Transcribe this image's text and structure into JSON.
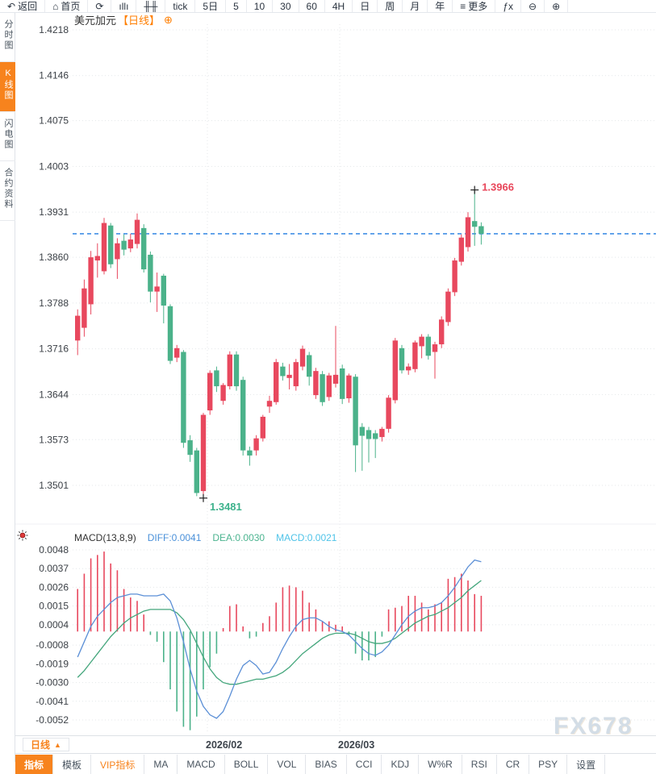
{
  "toolbar": {
    "items": [
      {
        "name": "toolbar-item-back",
        "icon": "back-arrow-icon",
        "glyph": "↶",
        "label": "返回"
      },
      {
        "name": "toolbar-item-home",
        "icon": "home-icon",
        "glyph": "⌂",
        "label": "首页"
      },
      {
        "name": "toolbar-item-refresh",
        "icon": "refresh-icon",
        "glyph": "⟳",
        "label": ""
      },
      {
        "name": "toolbar-item-bar-chart",
        "icon": "bar-chart-icon",
        "glyph": "ıllı",
        "label": ""
      },
      {
        "name": "toolbar-item-candle-chart",
        "icon": "candlestick-icon",
        "glyph": "╫╫",
        "label": ""
      },
      {
        "name": "toolbar-item-tick",
        "label": "tick"
      },
      {
        "name": "toolbar-item-5day",
        "label": "5日"
      },
      {
        "name": "toolbar-item-5min",
        "label": "5"
      },
      {
        "name": "toolbar-item-10min",
        "label": "10"
      },
      {
        "name": "toolbar-item-30min",
        "label": "30"
      },
      {
        "name": "toolbar-item-60min",
        "label": "60"
      },
      {
        "name": "toolbar-item-4h",
        "label": "4H"
      },
      {
        "name": "toolbar-item-daily",
        "label": "日"
      },
      {
        "name": "toolbar-item-weekly",
        "label": "周"
      },
      {
        "name": "toolbar-item-monthly",
        "label": "月"
      },
      {
        "name": "toolbar-item-yearly",
        "label": "年"
      },
      {
        "name": "toolbar-item-more",
        "icon": "menu-icon",
        "glyph": "≡",
        "label": "更多"
      },
      {
        "name": "toolbar-item-formula",
        "icon": "fx-icon",
        "glyph": "ƒx",
        "label": ""
      },
      {
        "name": "toolbar-item-zoom-out",
        "icon": "zoom-out-icon",
        "glyph": "⊖",
        "label": ""
      },
      {
        "name": "toolbar-item-zoom-in",
        "icon": "zoom-in-icon",
        "glyph": "⊕",
        "label": ""
      }
    ]
  },
  "sidebar": {
    "items": [
      {
        "name": "sidebar-item-time-share",
        "label": "分时图"
      },
      {
        "name": "sidebar-item-kline",
        "label": "K线图",
        "active": true
      },
      {
        "name": "sidebar-item-lightning",
        "label": "闪电图"
      },
      {
        "name": "sidebar-item-contract-info",
        "label": "合约资料"
      }
    ]
  },
  "chart": {
    "title_symbol": "美元加元",
    "title_period": "【日线】",
    "add_icon_glyph": "⊕"
  },
  "macd_header": {
    "label": "MACD(13,8,9)",
    "diff": "DIFF:0.0041",
    "dea": "DEA:0.0030",
    "macd": "MACD:0.0021"
  },
  "period_selector": {
    "label": "日线",
    "arrow": "▲"
  },
  "tabs": {
    "items": [
      {
        "name": "tab-indicator",
        "label": "指标",
        "active": true
      },
      {
        "name": "tab-template",
        "label": "模板"
      },
      {
        "name": "tab-vip-indicator",
        "label": "VIP指标",
        "vip": true
      },
      {
        "name": "tab-ma",
        "label": "MA"
      },
      {
        "name": "tab-macd",
        "label": "MACD"
      },
      {
        "name": "tab-boll",
        "label": "BOLL"
      },
      {
        "name": "tab-vol",
        "label": "VOL"
      },
      {
        "name": "tab-bias",
        "label": "BIAS"
      },
      {
        "name": "tab-cci",
        "label": "CCI"
      },
      {
        "name": "tab-kdj",
        "label": "KDJ"
      },
      {
        "name": "tab-wr",
        "label": "W%R"
      },
      {
        "name": "tab-rsi",
        "label": "RSI"
      },
      {
        "name": "tab-cr",
        "label": "CR"
      },
      {
        "name": "tab-psy",
        "label": "PSY"
      },
      {
        "name": "tab-settings",
        "label": "设置"
      }
    ]
  },
  "watermark": "FX678",
  "colors": {
    "up": "#e8485e",
    "down": "#4bb28a",
    "last_price_line": "#1e7be0",
    "diff_line": "#5b8fd6",
    "dea_line": "#44a67c",
    "accent_orange": "#f7831d",
    "high_label": "#e8465a",
    "low_label": "#3db28c",
    "grid": "#e4e7ea",
    "axis_text": "#3a3f45"
  },
  "chart_data": {
    "type": "candlestick",
    "symbol": "美元加元",
    "period": "日线",
    "main": {
      "yticks": [
        "1.4218",
        "1.4146",
        "1.4075",
        "1.4003",
        "1.3931",
        "1.3860",
        "1.3788",
        "1.3716",
        "1.3644",
        "1.3573",
        "1.3501"
      ],
      "last_close": 1.3897,
      "high_marker": {
        "index": 61,
        "label": "1.3966"
      },
      "low_marker": {
        "index": 20,
        "label": "1.3481"
      },
      "candles": [
        [
          1.3729,
          1.3778,
          1.3706,
          1.3768
        ],
        [
          1.3749,
          1.3825,
          1.3735,
          1.3811
        ],
        [
          1.3786,
          1.387,
          1.377,
          1.386
        ],
        [
          1.3855,
          1.3882,
          1.3828,
          1.3862
        ],
        [
          1.3838,
          1.3922,
          1.3833,
          1.3914
        ],
        [
          1.391,
          1.3914,
          1.3843,
          1.3849
        ],
        [
          1.3857,
          1.389,
          1.3826,
          1.3882
        ],
        [
          1.3886,
          1.3896,
          1.3863,
          1.3872
        ],
        [
          1.3874,
          1.3897,
          1.3868,
          1.3888
        ],
        [
          1.3881,
          1.3929,
          1.3874,
          1.3919
        ],
        [
          1.3906,
          1.3912,
          1.3836,
          1.3841
        ],
        [
          1.3864,
          1.3869,
          1.3789,
          1.3806
        ],
        [
          1.3806,
          1.3836,
          1.3774,
          1.3814
        ],
        [
          1.3831,
          1.3834,
          1.3756,
          1.3784
        ],
        [
          1.3783,
          1.3786,
          1.3692,
          1.3697
        ],
        [
          1.3702,
          1.3722,
          1.3695,
          1.3717
        ],
        [
          1.3711,
          1.3714,
          1.356,
          1.3568
        ],
        [
          1.3572,
          1.358,
          1.3538,
          1.3549
        ],
        [
          1.3556,
          1.356,
          1.3484,
          1.3489
        ],
        [
          1.3492,
          1.3615,
          1.3481,
          1.3612
        ],
        [
          1.3619,
          1.3682,
          1.3612,
          1.3678
        ],
        [
          1.3682,
          1.3688,
          1.3648,
          1.3657
        ],
        [
          1.3634,
          1.3662,
          1.3628,
          1.3659
        ],
        [
          1.3657,
          1.3712,
          1.3652,
          1.3707
        ],
        [
          1.3707,
          1.3712,
          1.365,
          1.3657
        ],
        [
          1.3667,
          1.3672,
          1.3548,
          1.3556
        ],
        [
          1.3556,
          1.3562,
          1.3532,
          1.3548
        ],
        [
          1.3556,
          1.358,
          1.3548,
          1.3575
        ],
        [
          1.3575,
          1.3612,
          1.357,
          1.3609
        ],
        [
          1.3625,
          1.3642,
          1.3615,
          1.3634
        ],
        [
          1.3632,
          1.37,
          1.3628,
          1.3695
        ],
        [
          1.3688,
          1.3694,
          1.3666,
          1.3673
        ],
        [
          1.367,
          1.3692,
          1.3652,
          1.3675
        ],
        [
          1.3657,
          1.37,
          1.365,
          1.3695
        ],
        [
          1.3688,
          1.3721,
          1.3682,
          1.3716
        ],
        [
          1.3706,
          1.3711,
          1.3658,
          1.3672
        ],
        [
          1.3643,
          1.3686,
          1.3637,
          1.3681
        ],
        [
          1.3676,
          1.3681,
          1.3626,
          1.3632
        ],
        [
          1.364,
          1.3678,
          1.3634,
          1.3674
        ],
        [
          1.3661,
          1.3752,
          1.3655,
          1.3675
        ],
        [
          1.3685,
          1.3691,
          1.3629,
          1.3637
        ],
        [
          1.3638,
          1.3677,
          1.3631,
          1.3674
        ],
        [
          1.3672,
          1.3676,
          1.3522,
          1.3564
        ],
        [
          1.3593,
          1.3599,
          1.3524,
          1.3579
        ],
        [
          1.3588,
          1.3593,
          1.3537,
          1.3574
        ],
        [
          1.3583,
          1.3588,
          1.3544,
          1.3574
        ],
        [
          1.3577,
          1.3593,
          1.357,
          1.359
        ],
        [
          1.359,
          1.3643,
          1.3584,
          1.3639
        ],
        [
          1.3635,
          1.3733,
          1.363,
          1.3729
        ],
        [
          1.3717,
          1.3722,
          1.3677,
          1.3682
        ],
        [
          1.3682,
          1.3693,
          1.3675,
          1.3688
        ],
        [
          1.3684,
          1.3729,
          1.3679,
          1.3726
        ],
        [
          1.372,
          1.3739,
          1.3701,
          1.3735
        ],
        [
          1.3735,
          1.3739,
          1.3699,
          1.3705
        ],
        [
          1.3711,
          1.3727,
          1.3669,
          1.3723
        ],
        [
          1.3723,
          1.3767,
          1.3717,
          1.3762
        ],
        [
          1.3758,
          1.3811,
          1.3752,
          1.3806
        ],
        [
          1.3805,
          1.3859,
          1.3799,
          1.3855
        ],
        [
          1.3853,
          1.3896,
          1.3847,
          1.3891
        ],
        [
          1.3876,
          1.3931,
          1.3869,
          1.3923
        ],
        [
          1.3917,
          1.3966,
          1.3878,
          1.3908
        ],
        [
          1.3909,
          1.3915,
          1.388,
          1.3897
        ]
      ]
    },
    "x_labels": [
      {
        "text": "2026/02",
        "index": 21
      },
      {
        "text": "2026/03",
        "index": 41
      }
    ],
    "macd": {
      "params": "(13,8,9)",
      "yticks": [
        "0.0048",
        "0.0037",
        "0.0026",
        "0.0015",
        "0.0004",
        "-0.0008",
        "-0.0019",
        "-0.0030",
        "-0.0041",
        "-0.0052"
      ],
      "hist": [
        0.0025,
        0.0034,
        0.0043,
        0.0045,
        0.0047,
        0.004,
        0.0036,
        0.0025,
        0.002,
        0.0018,
        0.001,
        -0.0002,
        -0.0006,
        -0.0018,
        -0.0034,
        -0.0047,
        -0.0056,
        -0.0058,
        -0.005,
        -0.0034,
        -0.0021,
        -0.0013,
        0.0002,
        0.0015,
        0.0016,
        0.0003,
        -0.0004,
        -0.0003,
        0.0005,
        0.0009,
        0.0017,
        0.0026,
        0.0027,
        0.0026,
        0.0024,
        0.0017,
        0.0013,
        0.0006,
        0.0006,
        0.0004,
        0.0003,
        -0.0002,
        -0.0013,
        -0.0017,
        -0.0017,
        -0.0015,
        -0.0003,
        0.0013,
        0.0014,
        0.0015,
        0.0021,
        0.0021,
        0.0017,
        0.0013,
        0.0016,
        0.0017,
        0.0031,
        0.0032,
        0.0034,
        0.003,
        0.0022,
        0.0021
      ],
      "diff": [
        -0.0015,
        -0.0006,
        0.0003,
        0.0009,
        0.0013,
        0.0017,
        0.002,
        0.0021,
        0.0022,
        0.0022,
        0.0021,
        0.0021,
        0.0021,
        0.0022,
        0.0018,
        0.0008,
        -0.0006,
        -0.0022,
        -0.0035,
        -0.0044,
        -0.0049,
        -0.0051,
        -0.0047,
        -0.0038,
        -0.0028,
        -0.002,
        -0.0017,
        -0.002,
        -0.0025,
        -0.0024,
        -0.0018,
        -0.001,
        -0.0003,
        0.0003,
        0.0007,
        0.0008,
        0.0008,
        0.0006,
        0.0003,
        0.0001,
        0,
        -0.0002,
        -0.0006,
        -0.001,
        -0.0013,
        -0.0014,
        -0.0012,
        -0.0008,
        -0.0002,
        0.0004,
        0.0009,
        0.0012,
        0.0014,
        0.0014,
        0.0015,
        0.0017,
        0.0021,
        0.0026,
        0.0032,
        0.0038,
        0.0042,
        0.0041
      ],
      "dea": [
        -0.0027,
        -0.0023,
        -0.0018,
        -0.0013,
        -0.0008,
        -0.0003,
        0.0001,
        0.0005,
        0.0008,
        0.001,
        0.0012,
        0.0013,
        0.0013,
        0.0013,
        0.0013,
        0.0011,
        0.0007,
        0.0001,
        -0.0007,
        -0.0015,
        -0.0022,
        -0.0027,
        -0.003,
        -0.0031,
        -0.0031,
        -0.003,
        -0.0029,
        -0.0028,
        -0.0028,
        -0.0027,
        -0.0026,
        -0.0024,
        -0.0021,
        -0.0017,
        -0.0013,
        -0.001,
        -0.0007,
        -0.0004,
        -0.0002,
        -0.0001,
        -0.0001,
        -0.0001,
        -0.0002,
        -0.0004,
        -0.0006,
        -0.0007,
        -0.0007,
        -0.0006,
        -0.0004,
        -0.0001,
        0.0002,
        0.0005,
        0.0007,
        0.0009,
        0.001,
        0.0012,
        0.0014,
        0.0017,
        0.002,
        0.0024,
        0.0027,
        0.003
      ]
    }
  }
}
